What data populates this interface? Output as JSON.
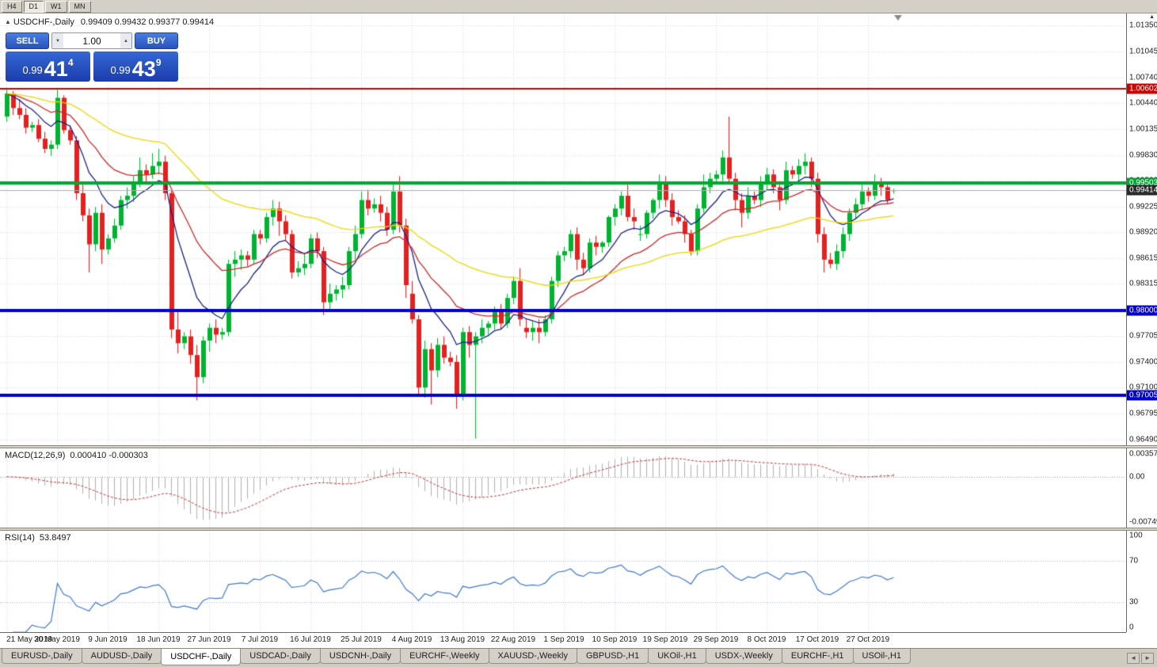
{
  "toolbar": {
    "periods": [
      "H4",
      "D1",
      "W1",
      "MN"
    ],
    "active": "D1"
  },
  "icons": {
    "title": "▲",
    "axis_up": "▲",
    "shift_marker": "▼",
    "spin_up": "▲",
    "spin_down": "▼",
    "tab_left": "◄",
    "tab_right": "►"
  },
  "trade_panel": {
    "sell_label": "SELL",
    "buy_label": "BUY",
    "volume": "1.00",
    "sell_price_prefix": "0.99",
    "sell_price_big": "41",
    "sell_price_sup": "4",
    "buy_price_prefix": "0.99",
    "buy_price_big": "43",
    "buy_price_sup": "9",
    "panel_color": "#2853c0"
  },
  "price_axis": {
    "ticks": [
      "1.01350",
      "1.01045",
      "1.00740",
      "1.00440",
      "1.00135",
      "0.99830",
      "0.99530",
      "0.99225",
      "0.98920",
      "0.98615",
      "0.98315",
      "0.98010",
      "0.97705",
      "0.97400",
      "0.97100",
      "0.96795",
      "0.96490"
    ],
    "tags": [
      {
        "label": "1.00602",
        "color": "#d00000"
      },
      {
        "label": "0.99503",
        "color": "#00a832"
      },
      {
        "label": "0.99414",
        "color": "#2b2b2b"
      },
      {
        "label": "0.98000",
        "color": "#0000d0"
      },
      {
        "label": "0.97005",
        "color": "#0000d0"
      }
    ]
  },
  "chart_data": [
    {
      "id": "price",
      "type": "candlestick",
      "symbol": "USDCHF",
      "timeframe": "Daily",
      "title": "USDCHF-,Daily",
      "ohlc_display": "0.99409 0.99432 0.99377 0.99414",
      "bid": 0.99414,
      "ylim": [
        0.96422,
        1.0149
      ],
      "up_color": "#00b432",
      "down_color": "#e42020",
      "ma_lines": [
        {
          "period": 9,
          "color": "#18208c"
        },
        {
          "period": 21,
          "color": "#cc2828"
        },
        {
          "period": 55,
          "color": "#ead800"
        }
      ],
      "levels": [
        {
          "price": 1.00602,
          "color": "#d00000",
          "width": 2
        },
        {
          "price": 0.99503,
          "color": "#00a832",
          "width": 4
        },
        {
          "price": 0.98,
          "color": "#0000d0",
          "width": 4
        },
        {
          "price": 0.97005,
          "color": "#0000d0",
          "width": 4
        }
      ],
      "date_labels": [
        {
          "i": 0,
          "text": "21 May 2019"
        },
        {
          "i": 8,
          "text": "30 May 2019"
        },
        {
          "i": 16,
          "text": "9 Jun 2019"
        },
        {
          "i": 24,
          "text": "18 Jun 2019"
        },
        {
          "i": 32,
          "text": "27 Jun 2019"
        },
        {
          "i": 40,
          "text": "7 Jul 2019"
        },
        {
          "i": 48,
          "text": "16 Jul 2019"
        },
        {
          "i": 56,
          "text": "25 Jul 2019"
        },
        {
          "i": 64,
          "text": "4 Aug 2019"
        },
        {
          "i": 72,
          "text": "13 Aug 2019"
        },
        {
          "i": 80,
          "text": "22 Aug 2019"
        },
        {
          "i": 88,
          "text": "1 Sep 2019"
        },
        {
          "i": 96,
          "text": "10 Sep 2019"
        },
        {
          "i": 104,
          "text": "19 Sep 2019"
        },
        {
          "i": 112,
          "text": "29 Sep 2019"
        },
        {
          "i": 120,
          "text": "8 Oct 2019"
        },
        {
          "i": 128,
          "text": "17 Oct 2019"
        },
        {
          "i": 136,
          "text": "27 Oct 2019"
        }
      ],
      "candles": [
        [
          1.0028,
          1.0061,
          1.0022,
          1.0055
        ],
        [
          1.0055,
          1.0058,
          1.003,
          1.0038
        ],
        [
          1.0038,
          1.0048,
          1.0025,
          1.003
        ],
        [
          1.003,
          1.0038,
          1.0008,
          1.0015
        ],
        [
          1.0015,
          1.0022,
          1.001,
          1.0018
        ],
        [
          1.0018,
          1.0025,
          0.9998,
          1.0002
        ],
        [
          1.0002,
          1.001,
          0.9985,
          0.999
        ],
        [
          0.999,
          1.0,
          0.9982,
          0.9995
        ],
        [
          0.9995,
          1.006,
          0.999,
          1.005
        ],
        [
          1.005,
          1.0053,
          1.0008,
          1.0012
        ],
        [
          1.0012,
          1.0018,
          0.9995,
          1.0
        ],
        [
          1.0,
          1.0005,
          0.993,
          0.9938
        ],
        [
          0.9938,
          0.995,
          0.9905,
          0.9912
        ],
        [
          0.9912,
          0.992,
          0.9845,
          0.9878
        ],
        [
          0.9878,
          0.9922,
          0.987,
          0.9915
        ],
        [
          0.9915,
          0.9925,
          0.9855,
          0.9872
        ],
        [
          0.9872,
          0.989,
          0.9866,
          0.9885
        ],
        [
          0.9885,
          0.9908,
          0.988,
          0.99
        ],
        [
          0.99,
          0.9935,
          0.9895,
          0.993
        ],
        [
          0.993,
          0.9945,
          0.992,
          0.9935
        ],
        [
          0.9935,
          0.9958,
          0.9928,
          0.995
        ],
        [
          0.995,
          0.998,
          0.9945,
          0.9965
        ],
        [
          0.9965,
          0.9972,
          0.9952,
          0.996
        ],
        [
          0.996,
          0.9985,
          0.9955,
          0.997
        ],
        [
          0.997,
          0.999,
          0.996,
          0.9975
        ],
        [
          0.9975,
          0.9982,
          0.993,
          0.9938
        ],
        [
          0.9938,
          0.9942,
          0.9768,
          0.9778
        ],
        [
          0.9778,
          0.98,
          0.975,
          0.9762
        ],
        [
          0.9762,
          0.9775,
          0.9755,
          0.977
        ],
        [
          0.977,
          0.9778,
          0.9738,
          0.9748
        ],
        [
          0.9748,
          0.976,
          0.9695,
          0.9722
        ],
        [
          0.9722,
          0.977,
          0.9715,
          0.9765
        ],
        [
          0.9765,
          0.9785,
          0.9752,
          0.978
        ],
        [
          0.978,
          0.979,
          0.9762,
          0.9772
        ],
        [
          0.9772,
          0.978,
          0.9766,
          0.9775
        ],
        [
          0.9775,
          0.986,
          0.977,
          0.9855
        ],
        [
          0.9855,
          0.987,
          0.984,
          0.986
        ],
        [
          0.986,
          0.9872,
          0.9848,
          0.9865
        ],
        [
          0.9865,
          0.987,
          0.9852,
          0.986
        ],
        [
          0.986,
          0.9895,
          0.9855,
          0.989
        ],
        [
          0.989,
          0.9895,
          0.9878,
          0.9885
        ],
        [
          0.9885,
          0.9915,
          0.988,
          0.991
        ],
        [
          0.991,
          0.993,
          0.99,
          0.992
        ],
        [
          0.992,
          0.9928,
          0.9888,
          0.9905
        ],
        [
          0.9905,
          0.9912,
          0.9882,
          0.989
        ],
        [
          0.989,
          0.9895,
          0.9838,
          0.9845
        ],
        [
          0.9845,
          0.9858,
          0.984,
          0.985
        ],
        [
          0.985,
          0.9868,
          0.9842,
          0.9855
        ],
        [
          0.9855,
          0.989,
          0.985,
          0.9885
        ],
        [
          0.9885,
          0.9892,
          0.9862,
          0.987
        ],
        [
          0.987,
          0.9875,
          0.9795,
          0.981
        ],
        [
          0.981,
          0.9832,
          0.9802,
          0.982
        ],
        [
          0.982,
          0.983,
          0.9812,
          0.9825
        ],
        [
          0.9825,
          0.984,
          0.9815,
          0.983
        ],
        [
          0.983,
          0.9875,
          0.9825,
          0.987
        ],
        [
          0.987,
          0.99,
          0.986,
          0.989
        ],
        [
          0.989,
          0.994,
          0.9885,
          0.993
        ],
        [
          0.993,
          0.9942,
          0.9912,
          0.992
        ],
        [
          0.992,
          0.9932,
          0.9915,
          0.9925
        ],
        [
          0.9925,
          0.9935,
          0.9905,
          0.9915
        ],
        [
          0.9915,
          0.9922,
          0.9888,
          0.9895
        ],
        [
          0.9895,
          0.995,
          0.989,
          0.994
        ],
        [
          0.994,
          0.9958,
          0.9892,
          0.99
        ],
        [
          0.99,
          0.9908,
          0.9815,
          0.983
        ],
        [
          0.982,
          0.9835,
          0.9785,
          0.979
        ],
        [
          0.979,
          0.9795,
          0.97,
          0.971
        ],
        [
          0.971,
          0.9765,
          0.9698,
          0.9755
        ],
        [
          0.9755,
          0.9762,
          0.969,
          0.973
        ],
        [
          0.973,
          0.9768,
          0.9722,
          0.976
        ],
        [
          0.976,
          0.977,
          0.9738,
          0.9745
        ],
        [
          0.9745,
          0.9752,
          0.9735,
          0.974
        ],
        [
          0.974,
          0.9748,
          0.9685,
          0.97
        ],
        [
          0.97,
          0.978,
          0.9695,
          0.9775
        ],
        [
          0.9775,
          0.9782,
          0.9745,
          0.976
        ],
        [
          0.976,
          0.9775,
          0.965,
          0.977
        ],
        [
          0.977,
          0.979,
          0.9762,
          0.978
        ],
        [
          0.978,
          0.9788,
          0.9772,
          0.9785
        ],
        [
          0.9785,
          0.9805,
          0.9778,
          0.98
        ],
        [
          0.98,
          0.9808,
          0.9778,
          0.9785
        ],
        [
          0.9785,
          0.982,
          0.978,
          0.9815
        ],
        [
          0.9815,
          0.984,
          0.9808,
          0.9835
        ],
        [
          0.9835,
          0.985,
          0.9782,
          0.979
        ],
        [
          0.978,
          0.979,
          0.9768,
          0.9775
        ],
        [
          0.9775,
          0.9788,
          0.9765,
          0.978
        ],
        [
          0.978,
          0.979,
          0.9762,
          0.9775
        ],
        [
          0.9775,
          0.9795,
          0.977,
          0.979
        ],
        [
          0.979,
          0.984,
          0.9785,
          0.9835
        ],
        [
          0.9835,
          0.987,
          0.9828,
          0.9865
        ],
        [
          0.9865,
          0.9875,
          0.9858,
          0.987
        ],
        [
          0.987,
          0.9895,
          0.9862,
          0.989
        ],
        [
          0.989,
          0.9898,
          0.9848,
          0.986
        ],
        [
          0.986,
          0.9868,
          0.9842,
          0.985
        ],
        [
          0.985,
          0.9885,
          0.9845,
          0.988
        ],
        [
          0.988,
          0.9888,
          0.9865,
          0.9875
        ],
        [
          0.9875,
          0.9882,
          0.9868,
          0.988
        ],
        [
          0.988,
          0.9912,
          0.9875,
          0.991
        ],
        [
          0.991,
          0.9925,
          0.99,
          0.992
        ],
        [
          0.992,
          0.994,
          0.9912,
          0.9935
        ],
        [
          0.9935,
          0.995,
          0.9905,
          0.991
        ],
        [
          0.991,
          0.992,
          0.9895,
          0.9905
        ],
        [
          0.989,
          0.99,
          0.9882,
          0.989
        ],
        [
          0.989,
          0.9918,
          0.9885,
          0.9915
        ],
        [
          0.9915,
          0.9932,
          0.9908,
          0.993
        ],
        [
          0.993,
          0.996,
          0.992,
          0.995
        ],
        [
          0.995,
          0.9958,
          0.9922,
          0.993
        ],
        [
          0.993,
          0.9938,
          0.99,
          0.991
        ],
        [
          0.991,
          0.9918,
          0.9902,
          0.9905
        ],
        [
          0.9905,
          0.9912,
          0.988,
          0.989
        ],
        [
          0.989,
          0.9895,
          0.9865,
          0.987
        ],
        [
          0.987,
          0.9925,
          0.9865,
          0.992
        ],
        [
          0.992,
          0.996,
          0.9915,
          0.9945
        ],
        [
          0.9945,
          0.9962,
          0.9938,
          0.9955
        ],
        [
          0.9955,
          0.9965,
          0.9948,
          0.996
        ],
        [
          0.996,
          0.9988,
          0.9952,
          0.998
        ],
        [
          0.998,
          1.0028,
          0.9948,
          0.9955
        ],
        [
          0.9955,
          0.9962,
          0.9918,
          0.993
        ],
        [
          0.993,
          0.9938,
          0.9898,
          0.9915
        ],
        [
          0.9915,
          0.9945,
          0.9908,
          0.9935
        ],
        [
          0.9935,
          0.994,
          0.9925,
          0.993
        ],
        [
          0.993,
          0.9958,
          0.9922,
          0.995
        ],
        [
          0.995,
          0.9968,
          0.9942,
          0.996
        ],
        [
          0.996,
          0.9966,
          0.9938,
          0.9945
        ],
        [
          0.9945,
          0.9952,
          0.9918,
          0.993
        ],
        [
          0.993,
          0.9975,
          0.9925,
          0.9965
        ],
        [
          0.9965,
          0.997,
          0.9955,
          0.996
        ],
        [
          0.996,
          0.9978,
          0.9952,
          0.997
        ],
        [
          0.997,
          0.9985,
          0.996,
          0.9975
        ],
        [
          0.9975,
          0.998,
          0.9945,
          0.9955
        ],
        [
          0.9955,
          0.9962,
          0.988,
          0.989
        ],
        [
          0.989,
          0.9898,
          0.9845,
          0.986
        ],
        [
          0.986,
          0.9868,
          0.985,
          0.9855
        ],
        [
          0.9855,
          0.9878,
          0.9848,
          0.987
        ],
        [
          0.987,
          0.9898,
          0.9862,
          0.989
        ],
        [
          0.989,
          0.992,
          0.9882,
          0.9915
        ],
        [
          0.9915,
          0.9932,
          0.9908,
          0.9925
        ],
        [
          0.9925,
          0.995,
          0.9918,
          0.994
        ],
        [
          0.994,
          0.9945,
          0.9928,
          0.9935
        ],
        [
          0.9935,
          0.996,
          0.993,
          0.995
        ],
        [
          0.995,
          0.9956,
          0.9935,
          0.9945
        ],
        [
          0.9945,
          0.995,
          0.9925,
          0.993
        ],
        [
          0.99409,
          0.99432,
          0.99377,
          0.99414
        ]
      ]
    },
    {
      "id": "macd",
      "type": "histogram+line",
      "label": "MACD(12,26,9)",
      "values_text": "0.000410 -0.000303",
      "params": {
        "fast": 12,
        "slow": 26,
        "signal": 9
      },
      "axis_ticks": [
        "0.003574",
        "0.00",
        "-0.00749"
      ],
      "histogram_color": "#b2b2b2",
      "signal_color": "#c83232",
      "derived_from": "closes of chart 0"
    },
    {
      "id": "rsi",
      "type": "line",
      "label": "RSI(14)",
      "value_text": "53.8497",
      "period": 14,
      "levels": [
        70,
        30
      ],
      "axis_ticks": [
        "100",
        "70",
        "30",
        "0"
      ],
      "line_color": "#3c78dc",
      "derived_from": "closes of chart 0"
    }
  ],
  "tabs": {
    "items": [
      "EURUSD-,Daily",
      "AUDUSD-,Daily",
      "USDCHF-,Daily",
      "USDCAD-,Daily",
      "USDCNH-,Daily",
      "EURCHF-,Weekly",
      "XAUUSD-,Weekly",
      "GBPUSD-,H1",
      "UKOil-,H1",
      "USDX-,Weekly",
      "EURCHF-,H1",
      "USOil-,H1"
    ],
    "active_index": 2
  }
}
